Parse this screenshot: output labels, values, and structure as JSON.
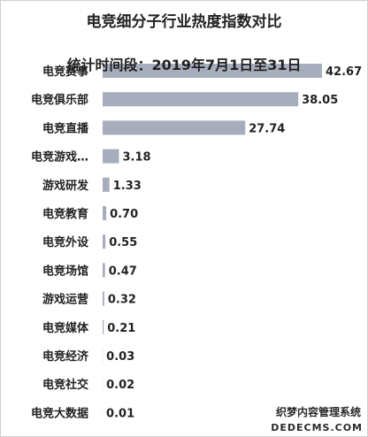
{
  "chart_data": {
    "type": "bar",
    "orientation": "horizontal",
    "title": "电竞细分子行业热度指数对比",
    "subtitle": "统计时间段：2019年7月1日至31日",
    "categories": [
      "电竞赛事",
      "电竞俱乐部",
      "电竞直播",
      "电竞游戏…",
      "游戏研发",
      "电竞教育",
      "电竞外设",
      "电竞场馆",
      "游戏运营",
      "电竞媒体",
      "电竞经济",
      "电竞社交",
      "电竞大数据"
    ],
    "values": [
      42.67,
      38.05,
      27.74,
      3.18,
      1.33,
      0.7,
      0.55,
      0.47,
      0.32,
      0.21,
      0.03,
      0.02,
      0.01
    ],
    "value_labels": [
      "42.67",
      "38.05",
      "27.74",
      "3.18",
      "1.33",
      "0.70",
      "0.55",
      "0.47",
      "0.32",
      "0.21",
      "0.03",
      "0.02",
      "0.01"
    ],
    "xlim": [
      0,
      42.67
    ],
    "bar_color": "#a7adbd",
    "grid": false,
    "legend": "none"
  },
  "watermark": {
    "line1": "织梦内容管理系统",
    "line2": "DEDECMS.COM"
  }
}
